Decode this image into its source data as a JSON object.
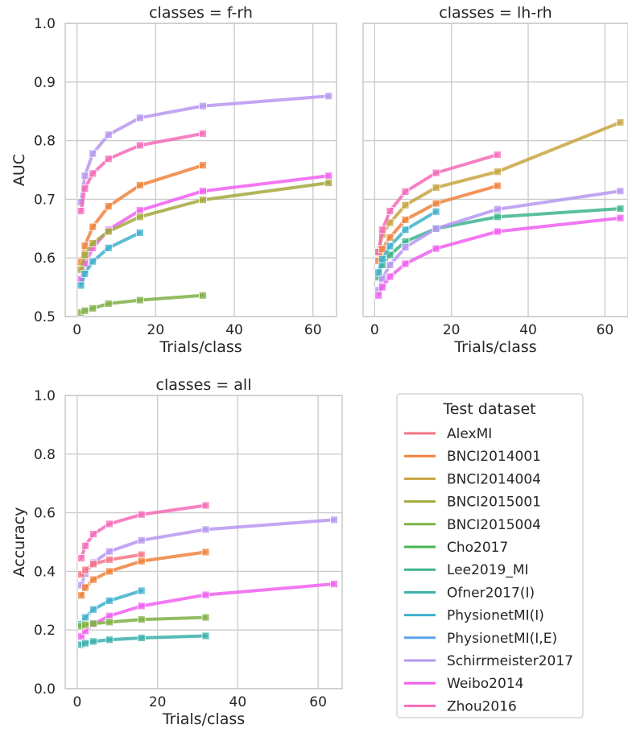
{
  "chart_data": [
    {
      "type": "line",
      "title": "classes = f-rh",
      "xlabel": "Trials/class",
      "ylabel": "AUC",
      "xlim": [
        -3,
        66
      ],
      "ylim": [
        0.5,
        1.0
      ],
      "xticks": [
        0,
        20,
        40,
        60
      ],
      "yticks": [
        0.5,
        0.6,
        0.7,
        0.8,
        0.9,
        1.0
      ],
      "grid": true,
      "series": [
        {
          "name": "Schirrmeister2017",
          "x": [
            1,
            2,
            4,
            8,
            16,
            32,
            64
          ],
          "values": [
            0.695,
            0.74,
            0.778,
            0.81,
            0.839,
            0.859,
            0.876
          ]
        },
        {
          "name": "Zhou2016",
          "x": [
            1,
            2,
            4,
            8,
            16,
            32
          ],
          "values": [
            0.68,
            0.718,
            0.744,
            0.769,
            0.792,
            0.812
          ]
        },
        {
          "name": "BNCI2014001",
          "x": [
            1,
            2,
            4,
            8,
            16,
            32
          ],
          "values": [
            0.593,
            0.621,
            0.653,
            0.688,
            0.724,
            0.758
          ]
        },
        {
          "name": "Weibo2014",
          "x": [
            1,
            2,
            4,
            8,
            16,
            32,
            64
          ],
          "values": [
            0.563,
            0.59,
            0.617,
            0.648,
            0.681,
            0.714,
            0.74
          ]
        },
        {
          "name": "BNCI2015001",
          "x": [
            1,
            2,
            4,
            8,
            16,
            32,
            64
          ],
          "values": [
            0.58,
            0.605,
            0.625,
            0.645,
            0.67,
            0.699,
            0.728
          ]
        },
        {
          "name": "PhysionetMI(I)",
          "x": [
            1,
            2,
            4,
            8,
            16
          ],
          "values": [
            0.553,
            0.573,
            0.594,
            0.617,
            0.643
          ]
        },
        {
          "name": "BNCI2015004",
          "x": [
            1,
            2,
            4,
            8,
            16,
            32
          ],
          "values": [
            0.507,
            0.51,
            0.514,
            0.522,
            0.528,
            0.536
          ]
        }
      ]
    },
    {
      "type": "line",
      "title": "classes = lh-rh",
      "xlabel": "Trials/class",
      "ylabel": "",
      "xlim": [
        -3,
        66
      ],
      "ylim": [
        0.5,
        1.0
      ],
      "xticks": [
        0,
        20,
        40,
        60
      ],
      "yticks": [
        0.5,
        0.6,
        0.7,
        0.8,
        0.9,
        1.0
      ],
      "grid": true,
      "series": [
        {
          "name": "BNCI2014004",
          "x": [
            1,
            2,
            4,
            8,
            16,
            32,
            64
          ],
          "values": [
            0.61,
            0.64,
            0.66,
            0.69,
            0.72,
            0.747,
            0.831
          ]
        },
        {
          "name": "Zhou2016",
          "x": [
            1,
            2,
            4,
            8,
            16,
            32
          ],
          "values": [
            0.61,
            0.648,
            0.68,
            0.713,
            0.745,
            0.776
          ]
        },
        {
          "name": "BNCI2014001",
          "x": [
            1,
            2,
            4,
            8,
            16,
            32
          ],
          "values": [
            0.595,
            0.615,
            0.635,
            0.665,
            0.693,
            0.723
          ]
        },
        {
          "name": "Lee2019_MI",
          "x": [
            1,
            2,
            4,
            8,
            16,
            32,
            64
          ],
          "values": [
            0.567,
            0.588,
            0.605,
            0.628,
            0.65,
            0.67,
            0.684
          ]
        },
        {
          "name": "Schirrmeister2017",
          "x": [
            1,
            2,
            4,
            8,
            16,
            32,
            64
          ],
          "values": [
            0.545,
            0.565,
            0.588,
            0.618,
            0.65,
            0.683,
            0.714
          ]
        },
        {
          "name": "PhysionetMI(I)",
          "x": [
            1,
            2,
            4,
            8,
            16
          ],
          "values": [
            0.575,
            0.598,
            0.62,
            0.648,
            0.679
          ]
        },
        {
          "name": "Weibo2014",
          "x": [
            1,
            2,
            4,
            8,
            16,
            32,
            64
          ],
          "values": [
            0.536,
            0.55,
            0.568,
            0.59,
            0.616,
            0.645,
            0.668
          ]
        }
      ]
    },
    {
      "type": "line",
      "title": "classes = all",
      "xlabel": "Trials/class",
      "ylabel": "Accuracy",
      "xlim": [
        -3,
        66
      ],
      "ylim": [
        0.0,
        1.0
      ],
      "xticks": [
        0,
        20,
        40,
        60
      ],
      "yticks": [
        0.0,
        0.2,
        0.4,
        0.6,
        0.8,
        1.0
      ],
      "grid": true,
      "series": [
        {
          "name": "Zhou2016",
          "x": [
            1,
            2,
            4,
            8,
            16,
            32
          ],
          "values": [
            0.445,
            0.487,
            0.527,
            0.562,
            0.594,
            0.625
          ]
        },
        {
          "name": "Schirrmeister2017",
          "x": [
            1,
            2,
            4,
            8,
            16,
            32,
            64
          ],
          "values": [
            0.353,
            0.392,
            0.43,
            0.468,
            0.506,
            0.543,
            0.576
          ]
        },
        {
          "name": "AlexMI",
          "x": [
            1,
            2,
            4,
            8,
            16
          ],
          "values": [
            0.39,
            0.405,
            0.425,
            0.44,
            0.457
          ]
        },
        {
          "name": "BNCI2014001",
          "x": [
            1,
            2,
            4,
            8,
            16,
            32
          ],
          "values": [
            0.318,
            0.345,
            0.372,
            0.4,
            0.435,
            0.466
          ]
        },
        {
          "name": "PhysionetMI(I)",
          "x": [
            1,
            2,
            4,
            8,
            16
          ],
          "values": [
            0.22,
            0.243,
            0.27,
            0.3,
            0.334
          ]
        },
        {
          "name": "Weibo2014",
          "x": [
            1,
            2,
            4,
            8,
            16,
            32,
            64
          ],
          "values": [
            0.178,
            0.197,
            0.22,
            0.248,
            0.282,
            0.32,
            0.357
          ]
        },
        {
          "name": "BNCI2015004",
          "x": [
            1,
            2,
            4,
            8,
            16,
            32
          ],
          "values": [
            0.213,
            0.218,
            0.222,
            0.227,
            0.236,
            0.243
          ]
        },
        {
          "name": "Ofner2017(I)",
          "x": [
            1,
            2,
            4,
            8,
            16,
            32
          ],
          "values": [
            0.15,
            0.155,
            0.161,
            0.167,
            0.173,
            0.18
          ]
        }
      ]
    }
  ],
  "legend": {
    "title": "Test dataset",
    "placement": "lower-right panel",
    "entries": [
      {
        "name": "AlexMI",
        "color": "#f37586"
      },
      {
        "name": "BNCI2014001",
        "color": "#f0823c"
      },
      {
        "name": "BNCI2014004",
        "color": "#c8a440"
      },
      {
        "name": "BNCI2015001",
        "color": "#a6a83d"
      },
      {
        "name": "BNCI2015004",
        "color": "#7fb045"
      },
      {
        "name": "Cho2017",
        "color": "#47b552"
      },
      {
        "name": "Lee2019_MI",
        "color": "#3cb48c"
      },
      {
        "name": "Ofner2017(I)",
        "color": "#3aafa9"
      },
      {
        "name": "PhysionetMI(I)",
        "color": "#3eb0cb"
      },
      {
        "name": "PhysionetMI(I,E)",
        "color": "#5ba4ea"
      },
      {
        "name": "Schirrmeister2017",
        "color": "#b796f0"
      },
      {
        "name": "Weibo2014",
        "color": "#f05ff0"
      },
      {
        "name": "Zhou2016",
        "color": "#f56bb7"
      }
    ]
  }
}
